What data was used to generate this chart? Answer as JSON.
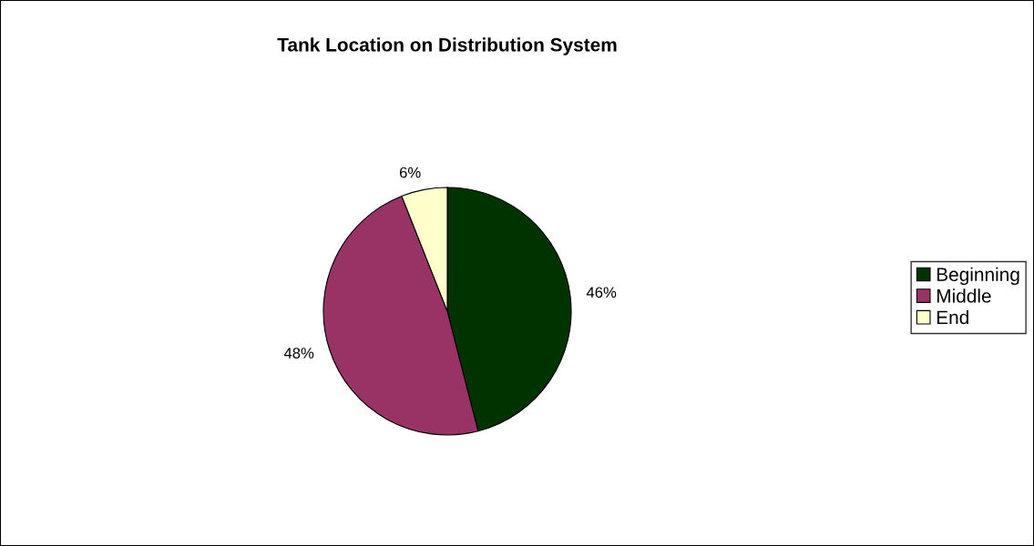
{
  "chart_data": {
    "type": "pie",
    "title": "Tank Location on Distribution System",
    "categories": [
      "Beginning",
      "Middle",
      "End"
    ],
    "values": [
      46,
      48,
      6
    ],
    "colors": [
      "#003300",
      "#993366",
      "#ffffcc"
    ],
    "value_labels": [
      "46%",
      "48%",
      "6%"
    ],
    "legend": "right"
  }
}
